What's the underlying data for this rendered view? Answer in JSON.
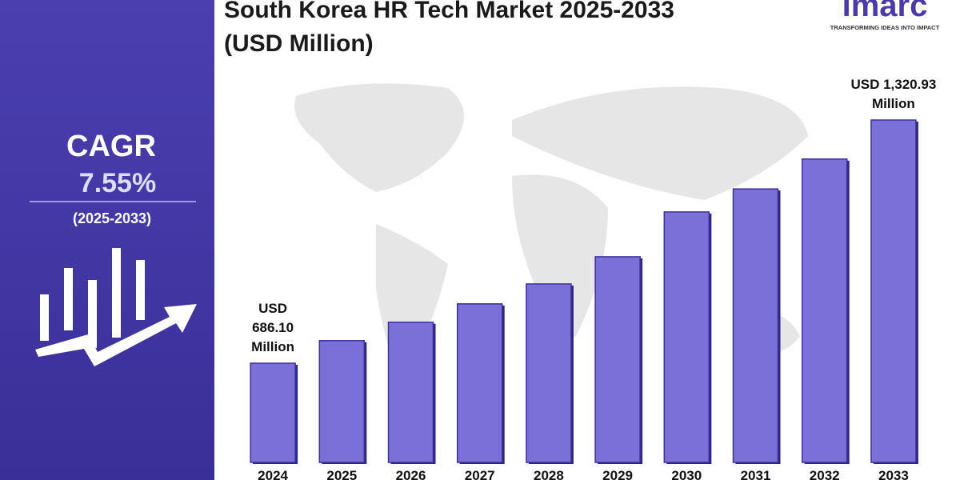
{
  "chart_data": {
    "type": "bar",
    "title": "South Korea HR Tech Market 2025-2033",
    "subtitle": "(USD Million)",
    "categories": [
      "2024",
      "2025",
      "2026",
      "2027",
      "2028",
      "2029",
      "2030",
      "2031",
      "2032",
      "2033"
    ],
    "values": [
      686.1,
      745,
      793,
      841,
      893,
      964,
      1081,
      1141,
      1219,
      1320.93
    ],
    "value_labels": [
      "USD 686.10 Million",
      null,
      null,
      null,
      null,
      null,
      null,
      null,
      null,
      "USD 1,320.93 Million"
    ],
    "color": "#7b6fd8"
  },
  "side_panel": {
    "heading": "CAGR",
    "rate": "7.55%",
    "period": "(2025-2033)"
  },
  "logo": {
    "name": "imarc",
    "tagline": "TRANSFORMING IDEAS INTO IMPACT"
  }
}
